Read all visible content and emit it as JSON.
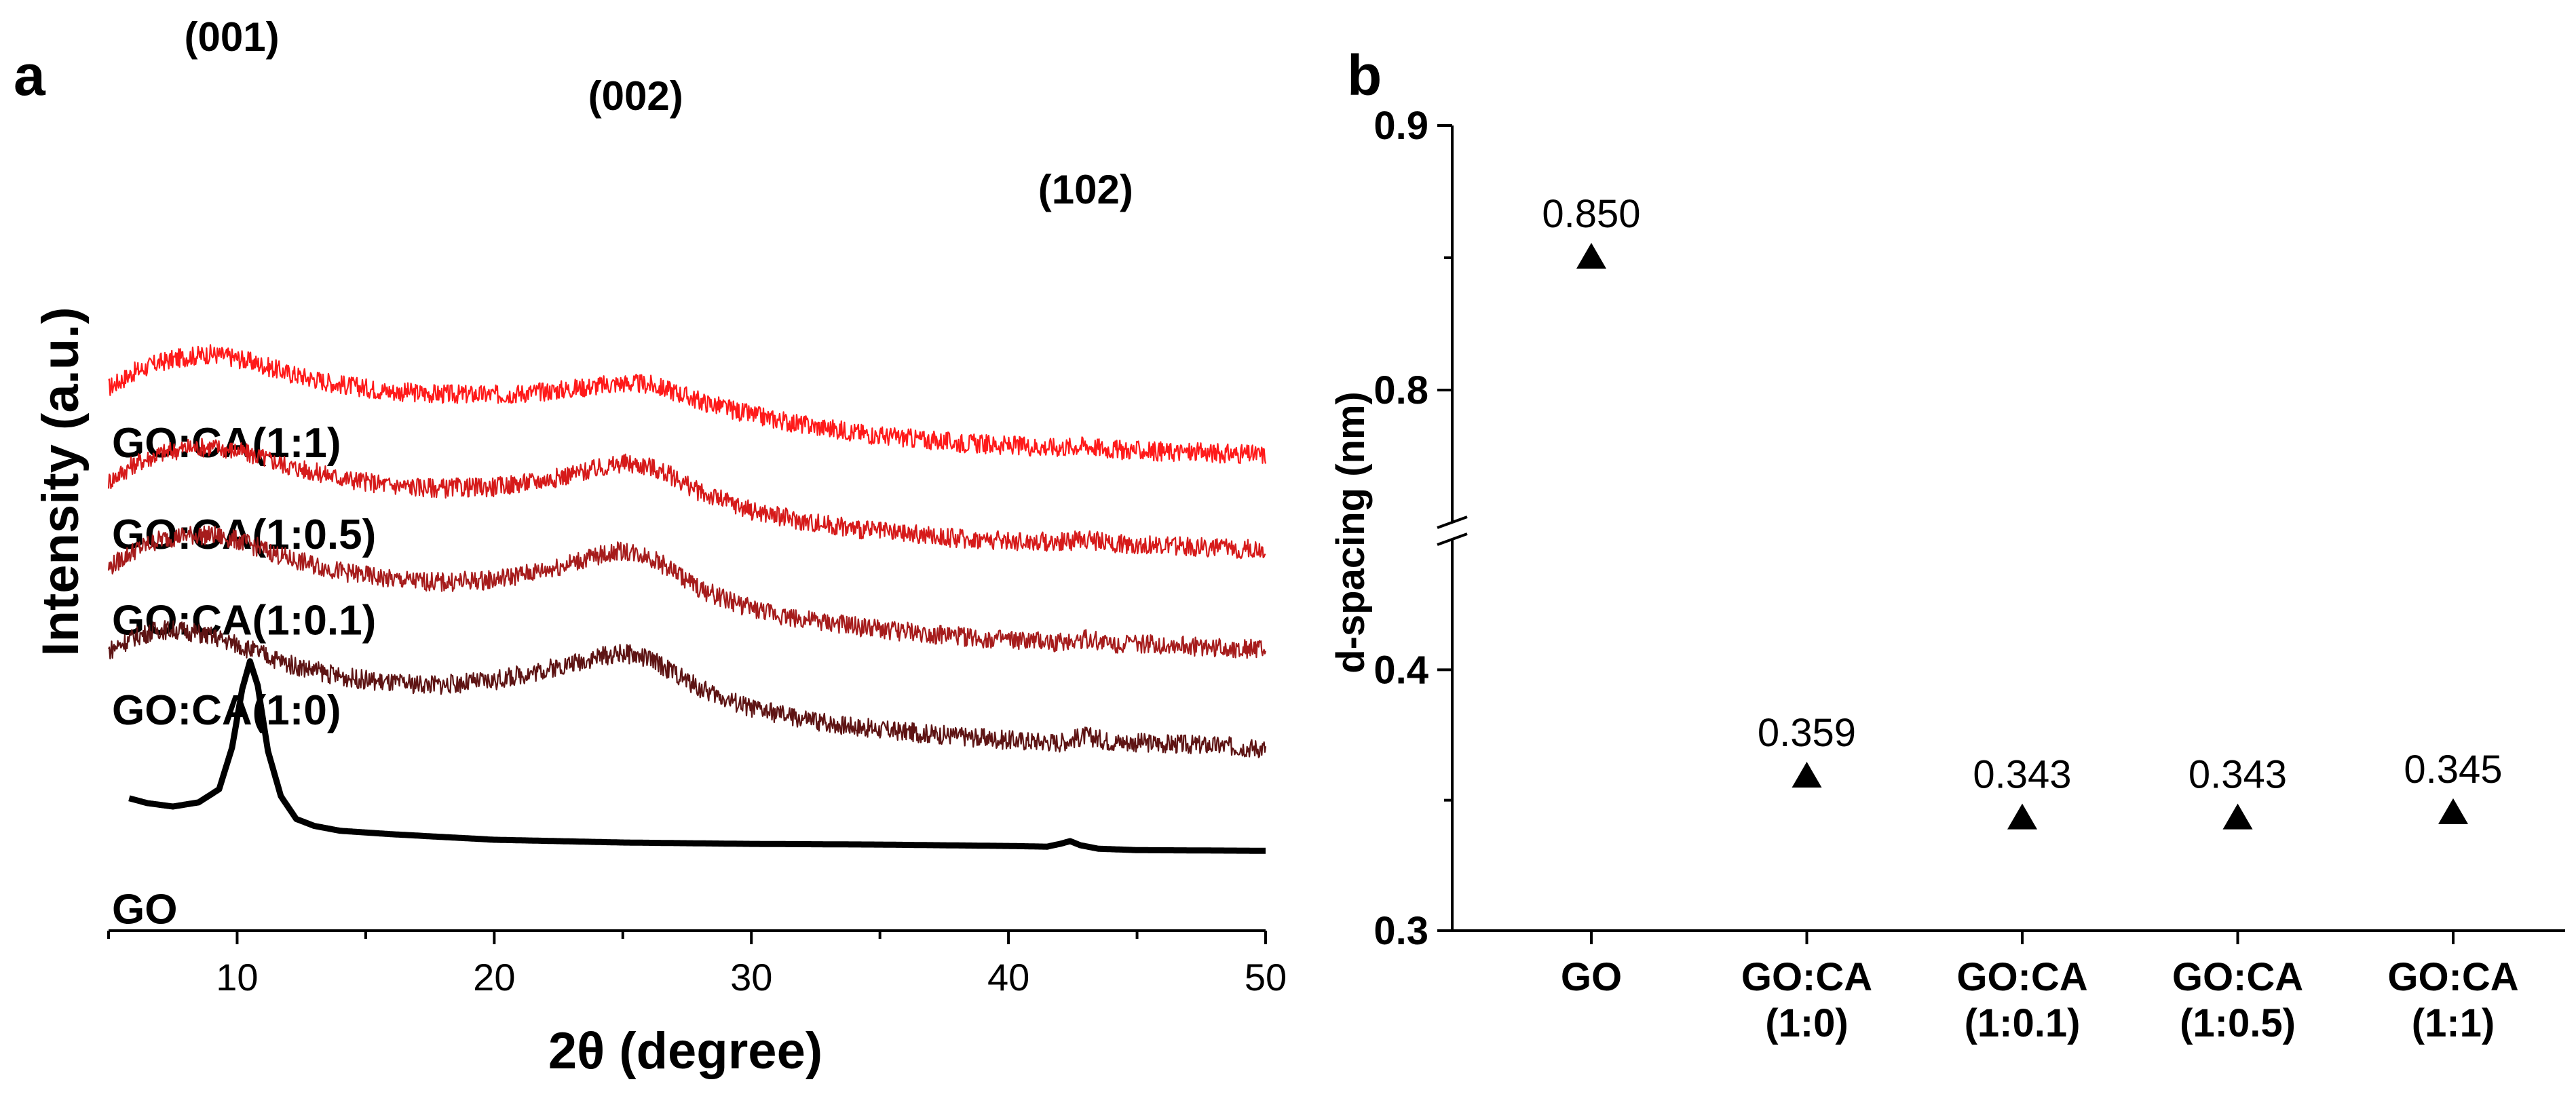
{
  "figure": {
    "panel_a_label": "a",
    "panel_b_label": "b"
  },
  "chart_data": [
    {
      "type": "line",
      "panel": "a",
      "xlabel": "2θ (degree)",
      "ylabel": "Intensity (a.u.)",
      "xlim": [
        5,
        50
      ],
      "xticks": [
        10,
        20,
        30,
        40,
        50
      ],
      "xtick_labels": [
        "10",
        "20",
        "30",
        "40",
        "50"
      ],
      "yticks": [],
      "peak_annotations": [
        {
          "label": "(001)",
          "x": 9
        },
        {
          "label": "(002)",
          "x": 25.5
        },
        {
          "label": "(102)",
          "x": 43
        }
      ],
      "series": [
        {
          "name": "GO:CA(1:1)",
          "color": "#ff1a1a",
          "x": [
            5,
            6,
            7,
            8,
            9,
            10,
            11,
            12,
            14,
            16,
            18,
            20,
            22,
            24,
            25,
            26,
            27,
            28,
            30,
            32,
            35,
            38,
            40,
            42,
            43,
            44,
            46,
            48,
            50
          ],
          "y": [
            6.55,
            6.78,
            6.92,
            7.0,
            7.04,
            6.98,
            6.88,
            6.76,
            6.6,
            6.5,
            6.46,
            6.45,
            6.5,
            6.58,
            6.62,
            6.6,
            6.5,
            6.36,
            6.16,
            6.02,
            5.86,
            5.76,
            5.72,
            5.69,
            5.72,
            5.66,
            5.63,
            5.61,
            5.58
          ]
        },
        {
          "name": "GO:CA(1:0.5)",
          "color": "#d61a1a",
          "x": [
            5,
            6,
            7,
            8,
            9,
            10,
            11,
            12,
            14,
            16,
            18,
            20,
            22,
            24,
            25,
            26,
            27,
            28,
            30,
            32,
            35,
            38,
            40,
            42,
            43,
            44,
            46,
            48,
            50
          ],
          "y": [
            5.2,
            5.45,
            5.6,
            5.68,
            5.7,
            5.64,
            5.54,
            5.42,
            5.25,
            5.14,
            5.1,
            5.12,
            5.22,
            5.38,
            5.46,
            5.42,
            5.26,
            5.04,
            4.78,
            4.62,
            4.47,
            4.38,
            4.34,
            4.32,
            4.37,
            4.3,
            4.27,
            4.24,
            4.21
          ]
        },
        {
          "name": "GO:CA(1:0.1)",
          "color": "#a61c1c",
          "x": [
            5,
            6,
            7,
            8,
            9,
            10,
            11,
            12,
            14,
            16,
            18,
            20,
            22,
            24,
            25,
            26,
            27,
            28,
            30,
            32,
            35,
            38,
            40,
            42,
            43,
            44,
            46,
            48,
            50
          ],
          "y": [
            3.95,
            4.2,
            4.36,
            4.42,
            4.42,
            4.35,
            4.22,
            4.08,
            3.9,
            3.78,
            3.74,
            3.78,
            3.92,
            4.12,
            4.2,
            4.12,
            3.9,
            3.64,
            3.36,
            3.2,
            3.06,
            2.96,
            2.9,
            2.87,
            2.93,
            2.86,
            2.84,
            2.8,
            2.77
          ]
        },
        {
          "name": "GO:CA(1:0)",
          "color": "#5e1414",
          "x": [
            5,
            6,
            7,
            8,
            9,
            10,
            11,
            12,
            14,
            16,
            18,
            20,
            22,
            24,
            25,
            26,
            27,
            28,
            30,
            32,
            35,
            38,
            40,
            42,
            43,
            44,
            46,
            48,
            50
          ],
          "y": [
            2.75,
            2.95,
            3.06,
            3.04,
            2.96,
            2.84,
            2.7,
            2.56,
            2.38,
            2.28,
            2.26,
            2.32,
            2.48,
            2.66,
            2.72,
            2.64,
            2.44,
            2.2,
            1.92,
            1.76,
            1.61,
            1.52,
            1.46,
            1.43,
            1.52,
            1.44,
            1.41,
            1.38,
            1.34
          ]
        },
        {
          "name": "GO",
          "color": "#000000",
          "x": [
            5.8,
            6.5,
            7.5,
            8.5,
            9.3,
            9.8,
            10.2,
            10.5,
            10.8,
            11.2,
            11.7,
            12.3,
            13,
            14,
            16,
            18,
            20,
            25,
            30,
            35,
            40,
            41.5,
            42,
            42.4,
            42.8,
            43.5,
            45,
            50
          ],
          "y": [
            0.62,
            0.55,
            0.5,
            0.56,
            0.75,
            1.35,
            2.2,
            2.6,
            2.25,
            1.3,
            0.65,
            0.32,
            0.22,
            0.15,
            0.1,
            0.06,
            0.02,
            -0.02,
            -0.04,
            -0.05,
            -0.07,
            -0.08,
            -0.04,
            0.0,
            -0.06,
            -0.11,
            -0.13,
            -0.14
          ]
        }
      ]
    },
    {
      "type": "scatter",
      "panel": "b",
      "marker": "triangle",
      "ylabel": "d-spacing (nm)",
      "ylim_upper": [
        0.75,
        0.9
      ],
      "ylim_lower": [
        0.3,
        0.45
      ],
      "yticks": [
        0.3,
        0.4,
        0.8,
        0.9
      ],
      "ytick_labels": [
        "0.3",
        "0.4",
        "0.8",
        "0.9"
      ],
      "categories": [
        [
          "GO"
        ],
        [
          "GO:CA",
          "(1:0)"
        ],
        [
          "GO:CA",
          "(1:0.1)"
        ],
        [
          "GO:CA",
          "(1:0.5)"
        ],
        [
          "GO:CA",
          "(1:1)"
        ]
      ],
      "values": [
        0.85,
        0.359,
        0.343,
        0.343,
        0.345
      ],
      "value_labels": [
        "0.850",
        "0.359",
        "0.343",
        "0.343",
        "0.345"
      ]
    }
  ]
}
